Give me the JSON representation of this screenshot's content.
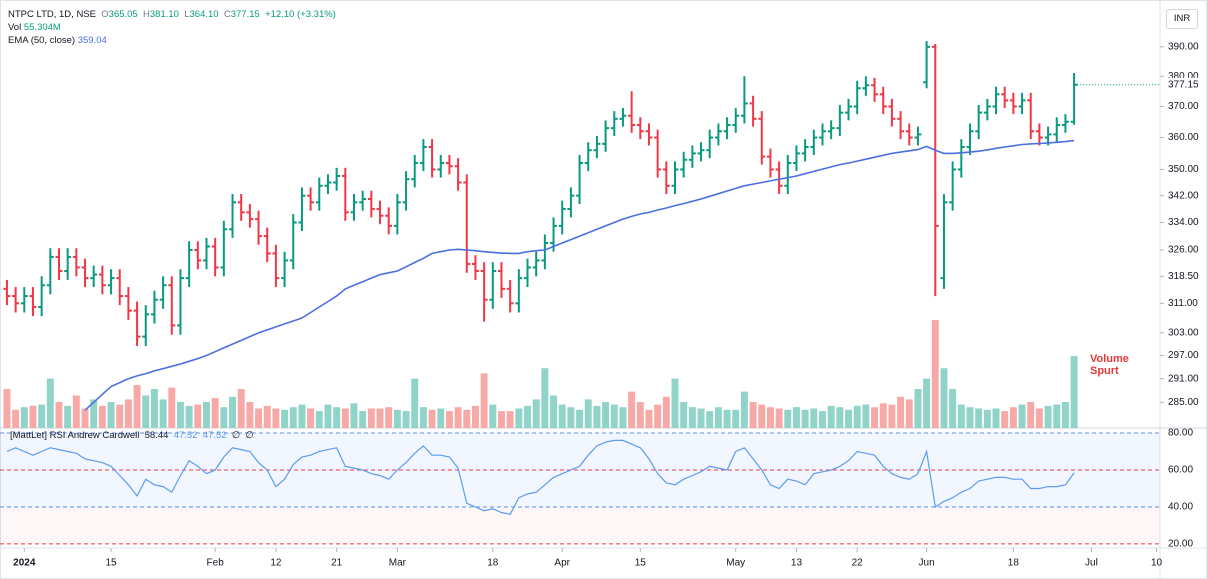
{
  "legend": {
    "symbol": "NTPC LTD, 1D, NSE",
    "ohlc": [
      {
        "label": "O",
        "value": "365.05"
      },
      {
        "label": "H",
        "value": "381.10"
      },
      {
        "label": "L",
        "value": "364.10"
      },
      {
        "label": "C",
        "value": "377.15"
      }
    ],
    "change": "+12.10 (+3.31%)",
    "volume": {
      "name": "Vol",
      "value": "55.304M"
    },
    "ema": {
      "name": "EMA (50, close)",
      "value": "359.04"
    },
    "rsi": {
      "name": "[MattLet] RSI Andrew Cardwell",
      "values": [
        "58.44",
        "47.52",
        "47.52",
        "∅",
        "∅"
      ]
    },
    "currency": "INR",
    "annotation": [
      "Volume",
      "Spurt"
    ]
  },
  "chart_data": {
    "type": "ohlc",
    "colors": {
      "up": "#089981",
      "down": "#f23645",
      "volume_up": "#8fd3c9",
      "volume_down": "#f7a9a7"
    },
    "xlim": [
      -0.8,
      132.9
    ],
    "xticks": [
      {
        "value": 2,
        "label": "2024"
      },
      {
        "value": 12,
        "label": "15"
      },
      {
        "value": 24,
        "label": "Feb"
      },
      {
        "value": 31,
        "label": "12"
      },
      {
        "value": 38,
        "label": "21"
      },
      {
        "value": 45,
        "label": "Mar"
      },
      {
        "value": 56,
        "label": "18"
      },
      {
        "value": 64,
        "label": "Apr"
      },
      {
        "value": 73,
        "label": "15"
      },
      {
        "value": 84,
        "label": "May"
      },
      {
        "value": 91,
        "label": "13"
      },
      {
        "value": 98,
        "label": "22"
      },
      {
        "value": 106,
        "label": "Jun"
      },
      {
        "value": 116,
        "label": "18"
      },
      {
        "value": 125,
        "label": "Jul"
      },
      {
        "value": 132.5,
        "label": "10"
      }
    ],
    "ylim": [
      278.6,
      403.6
    ],
    "log_scale": true,
    "yticks": [
      {
        "value": 390,
        "label": "390.00"
      },
      {
        "value": 380,
        "label": "380.00"
      },
      {
        "value": 370,
        "label": "370.00"
      },
      {
        "value": 360,
        "label": "360.00"
      },
      {
        "value": 350,
        "label": "350.00"
      },
      {
        "value": 342,
        "label": "342.00"
      },
      {
        "value": 334,
        "label": "334.00"
      },
      {
        "value": 326,
        "label": "326.00"
      },
      {
        "value": 318.5,
        "label": "318.50"
      },
      {
        "value": 311,
        "label": "311.00"
      },
      {
        "value": 303,
        "label": "303.00"
      },
      {
        "value": 297,
        "label": "297.00"
      },
      {
        "value": 291,
        "label": "291.00"
      },
      {
        "value": 285,
        "label": "285.00"
      }
    ],
    "open": [
      315,
      313,
      311,
      313,
      310,
      316,
      324,
      320,
      324,
      321,
      318,
      319,
      316,
      318,
      313,
      309,
      302,
      308,
      312,
      316,
      305,
      318,
      326,
      323,
      327,
      321,
      332,
      340,
      337,
      335,
      330,
      325,
      318,
      323,
      334,
      342,
      340,
      345,
      346,
      348,
      337,
      340,
      341,
      338,
      336,
      333,
      340,
      347,
      352,
      357,
      350,
      352,
      351,
      346,
      322,
      320,
      312,
      320,
      315,
      311,
      318,
      321,
      323,
      328,
      333,
      338,
      342,
      352,
      356,
      358,
      363,
      366,
      367,
      364,
      362,
      360,
      350,
      345,
      350,
      353,
      355,
      356,
      360,
      362,
      364,
      367,
      371,
      366,
      354,
      350,
      345,
      352,
      355,
      357,
      360,
      362,
      363,
      368,
      370,
      376,
      377,
      374,
      370,
      366,
      362,
      360,
      378,
      390,
      318,
      340,
      350,
      357,
      362,
      368,
      370,
      374,
      372,
      370,
      372,
      362,
      360,
      361,
      364,
      365.05
    ],
    "high": [
      317.5,
      315.5,
      315.5,
      315.5,
      318.5,
      326.5,
      326.5,
      326.5,
      326.5,
      323.5,
      321.5,
      321.5,
      320.5,
      320.5,
      315.5,
      311.5,
      310.5,
      314.5,
      318.5,
      318.5,
      320.5,
      328.5,
      328.5,
      329.5,
      329.5,
      334.5,
      342.5,
      342.5,
      339.5,
      337.5,
      332.5,
      327.5,
      325.5,
      336.5,
      344.5,
      344.5,
      347.5,
      348.5,
      350.5,
      350.5,
      342.5,
      343.5,
      343.5,
      340.5,
      338.5,
      342.5,
      349.5,
      354.5,
      359.5,
      359.5,
      354.5,
      354.5,
      353.5,
      348.5,
      324.5,
      322.5,
      322.5,
      322.5,
      317.5,
      320.5,
      323.5,
      325.5,
      330.5,
      335.5,
      340.5,
      344.5,
      354.5,
      358.5,
      360.5,
      365.5,
      368.5,
      369.5,
      375,
      366.5,
      364.5,
      362.5,
      352.5,
      352.5,
      355.5,
      357.5,
      358.5,
      362.5,
      364.5,
      366.5,
      369.5,
      380,
      373.5,
      368.5,
      356.5,
      352.5,
      354.5,
      357.5,
      359.5,
      362.5,
      364.5,
      365.5,
      370.5,
      372.5,
      378.5,
      380,
      379.5,
      376.5,
      372.5,
      368.5,
      364.5,
      363.5,
      392,
      391,
      342.5,
      352.5,
      359.5,
      364.5,
      370.5,
      372.5,
      376.5,
      376.5,
      374.5,
      374.5,
      374.5,
      364.5,
      363.5,
      366.5,
      367.5,
      381.1
    ],
    "low": [
      310.5,
      308.5,
      308.5,
      307.5,
      307.5,
      313.5,
      317.5,
      317.5,
      318.5,
      315.5,
      315.5,
      313.5,
      313.5,
      310.5,
      306.5,
      299.5,
      299.5,
      305.5,
      309.5,
      302.5,
      302.5,
      315.5,
      320.5,
      320.5,
      318.5,
      318.5,
      329.5,
      334.5,
      332.5,
      327.5,
      322.5,
      315.5,
      315.5,
      320.5,
      331.5,
      337.5,
      337.5,
      342.5,
      343.5,
      334.5,
      334.5,
      337.5,
      335.5,
      333.5,
      330.5,
      330.5,
      337.5,
      344.5,
      349.5,
      347.5,
      347.5,
      348.5,
      343.5,
      319.5,
      317.5,
      306,
      309.5,
      312.5,
      308.5,
      308.5,
      315.5,
      318.5,
      320.5,
      325.5,
      330.5,
      335.5,
      339.5,
      349.5,
      353.5,
      355.5,
      360.5,
      363.5,
      361.5,
      359.5,
      357.5,
      347.5,
      342.5,
      342.5,
      347.5,
      350.5,
      352.5,
      353.5,
      357.5,
      359.5,
      361.5,
      364.5,
      363.5,
      351.5,
      347.5,
      342.5,
      342.5,
      349.5,
      352.5,
      354.5,
      357.5,
      359.5,
      360.5,
      365.5,
      367.5,
      373.5,
      371.5,
      367.5,
      363.5,
      359.5,
      357.5,
      357.5,
      376,
      313,
      315,
      337.5,
      347.5,
      354.5,
      359.5,
      365.5,
      367.5,
      369.5,
      367.5,
      367.5,
      359.5,
      357.5,
      357.5,
      358.5,
      361.5,
      364.1
    ],
    "close": [
      313,
      311,
      313,
      310,
      316,
      324,
      320,
      324,
      321,
      318,
      319,
      316,
      318,
      313,
      309,
      302,
      308,
      312,
      316,
      305,
      318,
      326,
      323,
      327,
      321,
      332,
      340,
      337,
      335,
      330,
      325,
      318,
      323,
      334,
      342,
      340,
      345,
      346,
      348,
      337,
      340,
      341,
      338,
      336,
      333,
      340,
      347,
      352,
      357,
      350,
      352,
      351,
      346,
      322,
      320,
      312,
      320,
      315,
      311,
      318,
      321,
      323,
      328,
      333,
      338,
      342,
      352,
      356,
      358,
      363,
      366,
      367,
      364,
      362,
      360,
      350,
      345,
      350,
      353,
      355,
      356,
      360,
      362,
      364,
      367,
      371,
      366,
      354,
      350,
      345,
      352,
      355,
      357,
      360,
      362,
      363,
      368,
      370,
      376,
      377,
      374,
      370,
      366,
      362,
      360,
      361,
      390,
      333,
      340,
      350,
      357,
      362,
      368,
      370,
      374,
      372,
      370,
      372,
      362,
      360,
      361,
      364,
      365.05,
      377.15
    ],
    "volume": {
      "ylim": [
        0,
        150
      ],
      "values": [
        30,
        14,
        16,
        17,
        18,
        38,
        20,
        17,
        25,
        15,
        22,
        17,
        20,
        18,
        22,
        33,
        25,
        30,
        22,
        31,
        20,
        17,
        18,
        20,
        23,
        16,
        24,
        30,
        20,
        15,
        17,
        15,
        14,
        16,
        18,
        15,
        13,
        18,
        16,
        15,
        19,
        13,
        15,
        15,
        16,
        14,
        13,
        38,
        16,
        14,
        15,
        13,
        16,
        14,
        17,
        42,
        18,
        13,
        13,
        15,
        17,
        22,
        46,
        25,
        18,
        16,
        14,
        22,
        17,
        20,
        18,
        16,
        28,
        20,
        14,
        18,
        24,
        38,
        20,
        16,
        15,
        13,
        16,
        14,
        14,
        28,
        20,
        18,
        16,
        15,
        14,
        16,
        14,
        15,
        13,
        17,
        16,
        14,
        17,
        18,
        16,
        19,
        18,
        24,
        22,
        30,
        38,
        83,
        46,
        30,
        18,
        16,
        15,
        14,
        15,
        13,
        16,
        18,
        20,
        15,
        17,
        18,
        20,
        55.304
      ]
    },
    "ema": {
      "color": "#4b6fe0",
      "values": [
        null,
        null,
        null,
        null,
        null,
        null,
        null,
        null,
        null,
        283,
        285,
        287,
        289,
        290,
        291,
        291.7,
        292.3,
        293,
        293.6,
        294.2,
        294.8,
        295.5,
        296.2,
        297,
        298,
        299,
        300,
        301,
        302,
        303,
        303.8,
        304.6,
        305.4,
        306.2,
        307,
        308.5,
        310,
        311.5,
        313,
        315,
        316,
        317,
        318,
        319,
        319.5,
        320,
        321.2,
        322.4,
        323.6,
        325,
        325.5,
        326,
        326.2,
        326,
        325.8,
        325.5,
        325.3,
        325.1,
        325,
        325,
        325.5,
        325.8,
        326,
        327,
        328,
        329,
        330,
        331,
        332,
        333,
        334,
        335,
        335.8,
        336.5,
        337,
        337.7,
        338.3,
        339,
        339.6,
        340.3,
        341,
        341.8,
        342.6,
        343.4,
        344.2,
        345,
        345.5,
        346,
        346.5,
        347,
        347.5,
        348,
        348.7,
        349.4,
        350.1,
        350.8,
        351.5,
        352,
        352.6,
        353.2,
        353.8,
        354.4,
        355,
        355.4,
        355.8,
        356.2,
        357.2,
        356,
        355,
        355,
        355.2,
        355.4,
        355.7,
        356.1,
        356.6,
        357,
        357.4,
        357.8,
        358,
        358.1,
        358.3,
        358.5,
        358.7,
        359.04
      ]
    },
    "rsi": {
      "color": "#5b9cf0",
      "ylim": [
        17.8,
        82.7
      ],
      "yticks": [
        {
          "value": 80,
          "label": "80.00"
        },
        {
          "value": 60,
          "label": "60.00"
        },
        {
          "value": 40,
          "label": "40.00"
        },
        {
          "value": 20,
          "label": "20.00"
        }
      ],
      "level_colors": [
        "#5b8def",
        "#f23645",
        "#5b8def",
        "#f23645"
      ],
      "values": [
        70,
        72,
        70,
        68,
        70,
        72,
        71,
        70,
        69,
        66,
        65,
        64,
        62,
        57,
        52,
        46,
        55,
        52,
        51,
        48,
        57,
        65,
        62,
        58,
        60,
        67,
        72,
        71,
        70,
        64,
        60,
        51,
        55,
        63,
        67,
        68,
        70,
        71,
        72,
        62,
        61,
        60,
        58,
        57,
        55,
        60,
        64,
        69,
        73,
        68,
        68,
        67,
        61,
        42,
        40,
        38,
        39,
        37,
        36,
        45,
        47,
        48,
        52,
        56,
        58,
        60,
        62,
        68,
        73,
        75,
        76,
        76,
        74,
        72,
        66,
        58,
        53,
        52,
        55,
        57,
        59,
        62,
        61,
        60,
        70,
        72,
        66,
        60,
        52,
        50,
        55,
        54,
        52,
        58,
        59,
        60,
        62,
        65,
        70,
        69,
        68,
        62,
        58,
        56,
        55,
        58,
        70,
        40,
        43,
        45,
        48,
        50,
        54,
        55,
        56,
        56,
        55,
        55,
        50,
        50,
        51,
        51,
        52,
        58.44
      ]
    }
  }
}
